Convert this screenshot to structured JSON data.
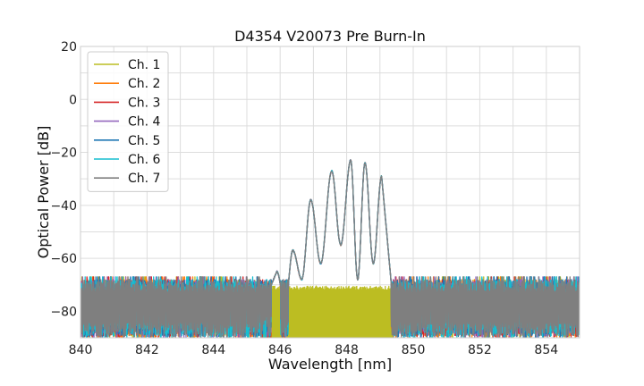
{
  "chart_data": {
    "type": "line",
    "title": "D4354 V20073 Pre Burn-In",
    "xlabel": "Wavelength [nm]",
    "ylabel": "Optical Power [dB]",
    "xlim": [
      840,
      855
    ],
    "ylim": [
      -90,
      20
    ],
    "xticks": [
      840,
      842,
      844,
      846,
      848,
      850,
      852,
      854
    ],
    "yticks": [
      -80,
      -60,
      -40,
      -20,
      0,
      20
    ],
    "grid": true,
    "legend_position": "upper-left",
    "noise_floor_range_db": [
      -90,
      -68
    ],
    "series": [
      {
        "name": "Ch. 1",
        "color": "#bcbd22"
      },
      {
        "name": "Ch. 2",
        "color": "#ff7f0e"
      },
      {
        "name": "Ch. 3",
        "color": "#d62728"
      },
      {
        "name": "Ch. 4",
        "color": "#9467bd"
      },
      {
        "name": "Ch. 5",
        "color": "#1f77b4"
      },
      {
        "name": "Ch. 6",
        "color": "#17becf"
      },
      {
        "name": "Ch. 7",
        "color": "#7f7f7f"
      }
    ],
    "spectrum_peaks": [
      {
        "x": 845.9,
        "y": -65
      },
      {
        "x": 846.38,
        "y": -57
      },
      {
        "x": 846.92,
        "y": -38
      },
      {
        "x": 847.55,
        "y": -27
      },
      {
        "x": 848.12,
        "y": -23
      },
      {
        "x": 848.55,
        "y": -24
      },
      {
        "x": 849.05,
        "y": -29
      }
    ],
    "spectrum_valleys": [
      {
        "x": 846.15,
        "y": -78
      },
      {
        "x": 846.65,
        "y": -68
      },
      {
        "x": 847.22,
        "y": -62
      },
      {
        "x": 847.82,
        "y": -55
      },
      {
        "x": 848.33,
        "y": -68
      },
      {
        "x": 848.8,
        "y": -62
      }
    ],
    "spectrum_x_range": [
      845.4,
      849.4
    ]
  }
}
